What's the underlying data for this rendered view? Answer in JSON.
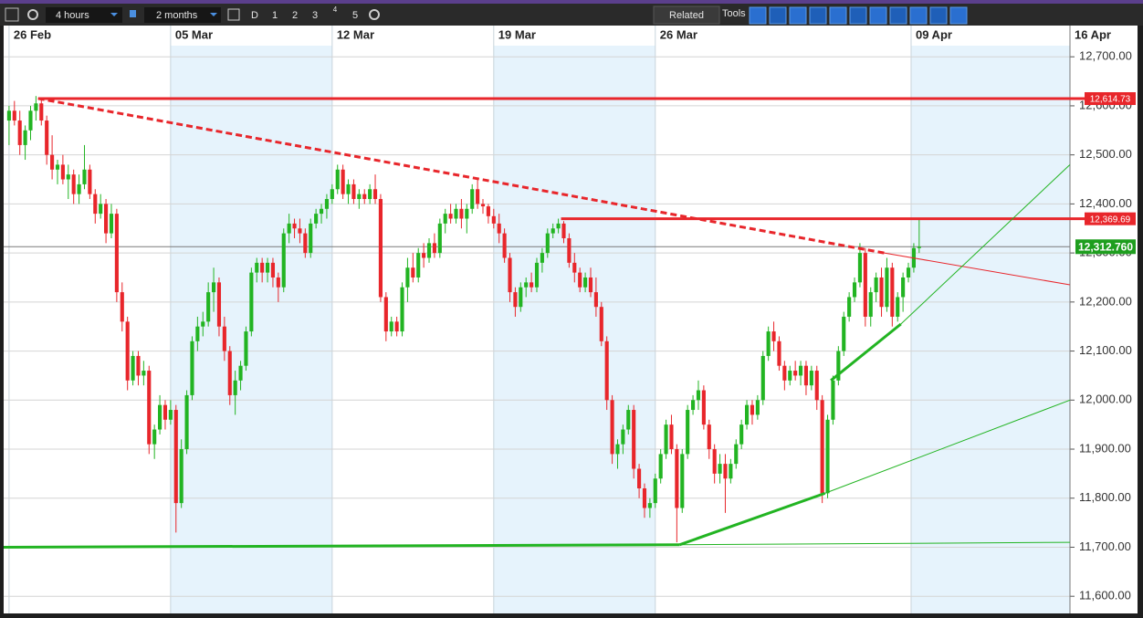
{
  "toolbar": {
    "interval": "4 hours",
    "range": "2 months",
    "buttons": [
      "D",
      "1",
      "2",
      "3",
      "4",
      "5"
    ],
    "related": "Related",
    "tools": "Tools"
  },
  "chart_data": {
    "type": "candlestick",
    "up_color": "#22b422",
    "down_color": "#e8262b",
    "grid": true,
    "xlim": [
      -1,
      197
    ],
    "ylim": [
      11565,
      12719
    ],
    "xticks": [
      {
        "value": 0,
        "label": "26 Feb"
      },
      {
        "value": 30,
        "label": "05 Mar"
      },
      {
        "value": 60,
        "label": "12 Mar"
      },
      {
        "value": 90,
        "label": "19 Mar"
      },
      {
        "value": 120,
        "label": "26 Mar"
      },
      {
        "value": 167.5,
        "label": "09 Apr"
      },
      {
        "value": 197,
        "label": "16 Apr"
      }
    ],
    "yticks": [
      {
        "value": 11600,
        "label": "11,600.00"
      },
      {
        "value": 11700,
        "label": "11,700.00"
      },
      {
        "value": 11800,
        "label": "11,800.00"
      },
      {
        "value": 11900,
        "label": "11,900.00"
      },
      {
        "value": 12000,
        "label": "12,000.00"
      },
      {
        "value": 12100,
        "label": "12,100.00"
      },
      {
        "value": 12200,
        "label": "12,200.00"
      },
      {
        "value": 12300,
        "label": "12,300.00"
      },
      {
        "value": 12400,
        "label": "12,400.00"
      },
      {
        "value": 12500,
        "label": "12,500.00"
      },
      {
        "value": 12600,
        "label": "12,600.00"
      },
      {
        "value": 12700,
        "label": "12,700.00"
      }
    ],
    "ohlc": [
      [
        12570,
        12600,
        12520,
        12590
      ],
      [
        12590,
        12610,
        12560,
        12570
      ],
      [
        12570,
        12590,
        12500,
        12520
      ],
      [
        12520,
        12560,
        12490,
        12550
      ],
      [
        12550,
        12600,
        12530,
        12590
      ],
      [
        12590,
        12620,
        12570,
        12605
      ],
      [
        12605,
        12615,
        12560,
        12570
      ],
      [
        12570,
        12580,
        12480,
        12500
      ],
      [
        12500,
        12540,
        12450,
        12470
      ],
      [
        12470,
        12490,
        12440,
        12480
      ],
      [
        12480,
        12500,
        12440,
        12450
      ],
      [
        12450,
        12480,
        12410,
        12460
      ],
      [
        12460,
        12470,
        12400,
        12420
      ],
      [
        12420,
        12460,
        12400,
        12440
      ],
      [
        12440,
        12520,
        12430,
        12470
      ],
      [
        12470,
        12480,
        12410,
        12420
      ],
      [
        12420,
        12430,
        12360,
        12380
      ],
      [
        12380,
        12420,
        12370,
        12400
      ],
      [
        12400,
        12410,
        12320,
        12340
      ],
      [
        12340,
        12400,
        12330,
        12380
      ],
      [
        12380,
        12390,
        12200,
        12220
      ],
      [
        12220,
        12240,
        12140,
        12160
      ],
      [
        12160,
        12170,
        12020,
        12040
      ],
      [
        12040,
        12100,
        12030,
        12090
      ],
      [
        12090,
        12100,
        12030,
        12050
      ],
      [
        12050,
        12080,
        12030,
        12060
      ],
      [
        12060,
        12070,
        11890,
        11910
      ],
      [
        11910,
        11950,
        11880,
        11940
      ],
      [
        11940,
        12010,
        11930,
        11990
      ],
      [
        11990,
        12000,
        11940,
        11960
      ],
      [
        11960,
        12000,
        11950,
        11980
      ],
      [
        11980,
        11990,
        11730,
        11790
      ],
      [
        11790,
        11920,
        11780,
        11900
      ],
      [
        11900,
        12020,
        11890,
        12010
      ],
      [
        12010,
        12130,
        12000,
        12120
      ],
      [
        12120,
        12170,
        12100,
        12150
      ],
      [
        12150,
        12180,
        12130,
        12160
      ],
      [
        12160,
        12240,
        12150,
        12220
      ],
      [
        12220,
        12270,
        12180,
        12240
      ],
      [
        12240,
        12250,
        12130,
        12150
      ],
      [
        12150,
        12170,
        12080,
        12100
      ],
      [
        12100,
        12110,
        11990,
        12010
      ],
      [
        12010,
        12060,
        11970,
        12040
      ],
      [
        12040,
        12080,
        12020,
        12070
      ],
      [
        12070,
        12150,
        12060,
        12140
      ],
      [
        12140,
        12270,
        12130,
        12260
      ],
      [
        12260,
        12290,
        12240,
        12280
      ],
      [
        12280,
        12290,
        12240,
        12260
      ],
      [
        12260,
        12290,
        12240,
        12280
      ],
      [
        12280,
        12290,
        12230,
        12250
      ],
      [
        12250,
        12260,
        12200,
        12230
      ],
      [
        12230,
        12350,
        12220,
        12340
      ],
      [
        12340,
        12380,
        12320,
        12360
      ],
      [
        12360,
        12370,
        12330,
        12350
      ],
      [
        12350,
        12370,
        12320,
        12340
      ],
      [
        12340,
        12350,
        12290,
        12300
      ],
      [
        12300,
        12370,
        12290,
        12360
      ],
      [
        12360,
        12390,
        12350,
        12380
      ],
      [
        12380,
        12400,
        12360,
        12390
      ],
      [
        12390,
        12420,
        12370,
        12410
      ],
      [
        12410,
        12440,
        12400,
        12430
      ],
      [
        12430,
        12480,
        12420,
        12470
      ],
      [
        12470,
        12480,
        12410,
        12420
      ],
      [
        12420,
        12450,
        12400,
        12440
      ],
      [
        12440,
        12450,
        12400,
        12410
      ],
      [
        12410,
        12430,
        12390,
        12420
      ],
      [
        12420,
        12430,
        12400,
        12410
      ],
      [
        12410,
        12440,
        12400,
        12430
      ],
      [
        12430,
        12460,
        12400,
        12410
      ],
      [
        12410,
        12420,
        12200,
        12210
      ],
      [
        12210,
        12220,
        12120,
        12140
      ],
      [
        12140,
        12170,
        12130,
        12160
      ],
      [
        12160,
        12170,
        12130,
        12140
      ],
      [
        12140,
        12240,
        12130,
        12230
      ],
      [
        12230,
        12290,
        12200,
        12270
      ],
      [
        12270,
        12300,
        12240,
        12250
      ],
      [
        12250,
        12310,
        12240,
        12300
      ],
      [
        12300,
        12320,
        12270,
        12290
      ],
      [
        12290,
        12330,
        12280,
        12320
      ],
      [
        12320,
        12340,
        12290,
        12300
      ],
      [
        12300,
        12370,
        12290,
        12360
      ],
      [
        12360,
        12390,
        12340,
        12380
      ],
      [
        12380,
        12400,
        12360,
        12370
      ],
      [
        12370,
        12400,
        12360,
        12390
      ],
      [
        12390,
        12410,
        12350,
        12370
      ],
      [
        12370,
        12400,
        12340,
        12390
      ],
      [
        12390,
        12440,
        12380,
        12430
      ],
      [
        12430,
        12450,
        12390,
        12400
      ],
      [
        12400,
        12410,
        12380,
        12395
      ],
      [
        12395,
        12400,
        12360,
        12375
      ],
      [
        12375,
        12390,
        12350,
        12360
      ],
      [
        12360,
        12380,
        12320,
        12340
      ],
      [
        12340,
        12350,
        12280,
        12290
      ],
      [
        12290,
        12300,
        12200,
        12220
      ],
      [
        12220,
        12230,
        12170,
        12190
      ],
      [
        12190,
        12240,
        12180,
        12230
      ],
      [
        12230,
        12250,
        12210,
        12240
      ],
      [
        12240,
        12260,
        12220,
        12230
      ],
      [
        12230,
        12290,
        12220,
        12280
      ],
      [
        12280,
        12310,
        12260,
        12300
      ],
      [
        12300,
        12350,
        12290,
        12340
      ],
      [
        12340,
        12360,
        12330,
        12350
      ],
      [
        12350,
        12370,
        12340,
        12360
      ],
      [
        12360,
        12365,
        12320,
        12330
      ],
      [
        12330,
        12340,
        12270,
        12280
      ],
      [
        12280,
        12300,
        12240,
        12260
      ],
      [
        12260,
        12270,
        12220,
        12230
      ],
      [
        12230,
        12260,
        12220,
        12250
      ],
      [
        12250,
        12270,
        12210,
        12220
      ],
      [
        12220,
        12250,
        12170,
        12190
      ],
      [
        12190,
        12200,
        12110,
        12120
      ],
      [
        12120,
        12130,
        11980,
        12000
      ],
      [
        12000,
        12010,
        11870,
        11890
      ],
      [
        11890,
        11920,
        11860,
        11910
      ],
      [
        11910,
        11950,
        11890,
        11940
      ],
      [
        11940,
        11990,
        11930,
        11980
      ],
      [
        11980,
        11990,
        11840,
        11860
      ],
      [
        11860,
        11870,
        11800,
        11820
      ],
      [
        11820,
        11830,
        11760,
        11780
      ],
      [
        11780,
        11800,
        11760,
        11790
      ],
      [
        11790,
        11850,
        11780,
        11840
      ],
      [
        11840,
        11900,
        11830,
        11890
      ],
      [
        11890,
        11960,
        11880,
        11950
      ],
      [
        11950,
        11970,
        11890,
        11900
      ],
      [
        11900,
        11910,
        11710,
        11780
      ],
      [
        11780,
        11900,
        11770,
        11890
      ],
      [
        11890,
        11990,
        11880,
        11980
      ],
      [
        11980,
        12010,
        11970,
        12000
      ],
      [
        12000,
        12040,
        11980,
        12020
      ],
      [
        12020,
        12030,
        11940,
        11950
      ],
      [
        11950,
        11960,
        11880,
        11900
      ],
      [
        11900,
        11910,
        11830,
        11850
      ],
      [
        11850,
        11890,
        11830,
        11870
      ],
      [
        11870,
        11890,
        11770,
        11840
      ],
      [
        11840,
        11880,
        11830,
        11870
      ],
      [
        11870,
        11920,
        11860,
        11910
      ],
      [
        11910,
        11960,
        11900,
        11950
      ],
      [
        11950,
        12000,
        11940,
        11990
      ],
      [
        11990,
        12000,
        11950,
        11970
      ],
      [
        11970,
        12010,
        11960,
        12000
      ],
      [
        12000,
        12100,
        11990,
        12090
      ],
      [
        12090,
        12150,
        12080,
        12140
      ],
      [
        12140,
        12160,
        12100,
        12120
      ],
      [
        12120,
        12130,
        12060,
        12070
      ],
      [
        12070,
        12080,
        12020,
        12040
      ],
      [
        12040,
        12070,
        12030,
        12060
      ],
      [
        12060,
        12080,
        12040,
        12050
      ],
      [
        12050,
        12080,
        12030,
        12070
      ],
      [
        12070,
        12080,
        12010,
        12030
      ],
      [
        12030,
        12070,
        12020,
        12060
      ],
      [
        12060,
        12070,
        11980,
        12000
      ],
      [
        12000,
        12010,
        11790,
        11810
      ],
      [
        11810,
        11970,
        11800,
        11960
      ],
      [
        11960,
        12050,
        11950,
        12040
      ],
      [
        12040,
        12110,
        12030,
        12100
      ],
      [
        12100,
        12180,
        12090,
        12170
      ],
      [
        12170,
        12220,
        12160,
        12210
      ],
      [
        12210,
        12250,
        12200,
        12240
      ],
      [
        12240,
        12320,
        12230,
        12300
      ],
      [
        12300,
        12310,
        12150,
        12170
      ],
      [
        12170,
        12230,
        12150,
        12220
      ],
      [
        12220,
        12260,
        12200,
        12250
      ],
      [
        12250,
        12270,
        12170,
        12190
      ],
      [
        12190,
        12290,
        12180,
        12270
      ],
      [
        12270,
        12280,
        12150,
        12170
      ],
      [
        12170,
        12220,
        12160,
        12210
      ],
      [
        12210,
        12260,
        12180,
        12250
      ],
      [
        12250,
        12280,
        12240,
        12270
      ],
      [
        12270,
        12320,
        12260,
        12310
      ],
      [
        12310,
        12370,
        12300,
        12312.76
      ]
    ],
    "levels": [
      {
        "value": 12614.73,
        "label": "12,614.73",
        "start": 5.4,
        "color": "#e8262b"
      },
      {
        "value": 12369.69,
        "label": "12,369.69",
        "start": 102.5,
        "color": "#e8262b"
      }
    ],
    "last_price": {
      "value": 12312.76,
      "label": "12,312.760",
      "color": "#1e9e1e"
    },
    "lines": [
      {
        "color": "#e8262b",
        "width": 3,
        "dashed": true,
        "points": [
          [
            5.4,
            12615
          ],
          [
            162.5,
            12300
          ]
        ]
      },
      {
        "color": "#e8262b",
        "width": 1,
        "dashed": false,
        "points": [
          [
            162.5,
            12300
          ],
          [
            197,
            12235
          ]
        ]
      },
      {
        "color": "#22b422",
        "width": 3,
        "dashed": false,
        "points": [
          [
            -1,
            11700
          ],
          [
            124.5,
            11705
          ]
        ]
      },
      {
        "color": "#22b422",
        "width": 1,
        "dashed": false,
        "points": [
          [
            124.5,
            11705
          ],
          [
            197,
            11710
          ]
        ]
      },
      {
        "color": "#22b422",
        "width": 3,
        "dashed": false,
        "points": [
          [
            124.5,
            11705
          ],
          [
            151.5,
            11810
          ]
        ]
      },
      {
        "color": "#22b422",
        "width": 1,
        "dashed": false,
        "points": [
          [
            151.5,
            11810
          ],
          [
            197,
            12000
          ]
        ]
      },
      {
        "color": "#22b422",
        "width": 3,
        "dashed": false,
        "points": [
          [
            152.6,
            12040
          ],
          [
            165.6,
            12155
          ]
        ]
      },
      {
        "color": "#22b422",
        "width": 1,
        "dashed": false,
        "points": [
          [
            165.6,
            12155
          ],
          [
            197,
            12480
          ]
        ]
      }
    ]
  }
}
